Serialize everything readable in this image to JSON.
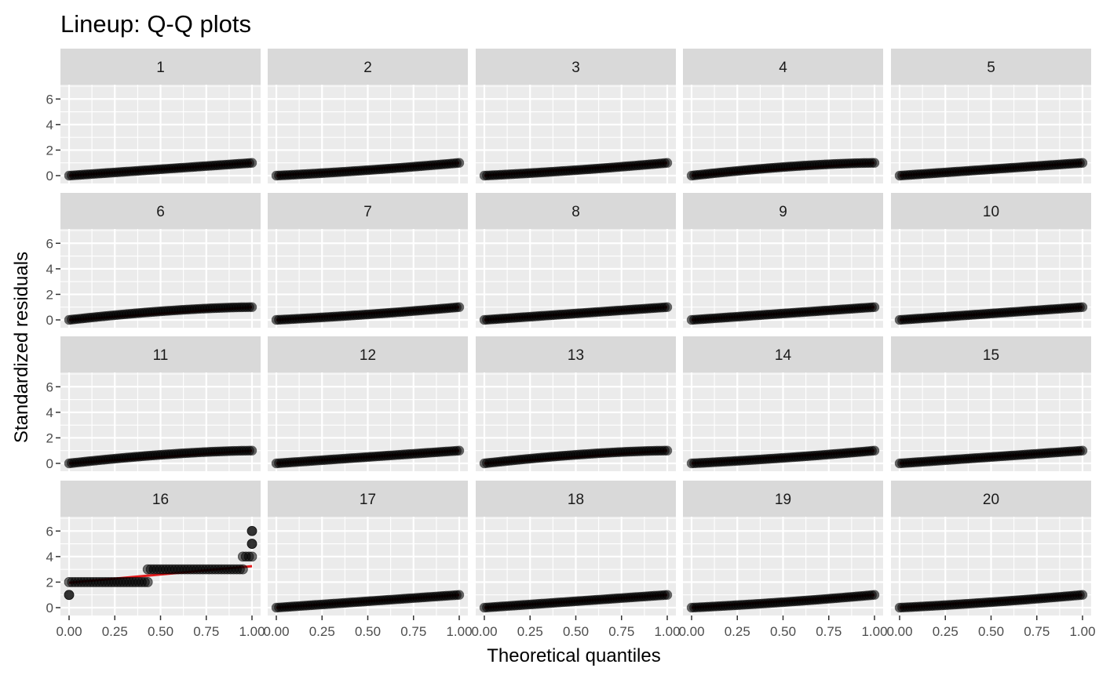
{
  "chart_data": {
    "type": "scatter",
    "title": "Lineup: Q-Q plots",
    "xlabel": "Theoretical quantiles",
    "ylabel": "Standardized residuals",
    "xlim": [
      0,
      1
    ],
    "ylim": [
      0,
      7
    ],
    "x_ticks": [
      0,
      0.25,
      0.5,
      0.75,
      1
    ],
    "x_tick_labels": [
      "0.00",
      "0.25",
      "0.50",
      "0.75",
      "1.00"
    ],
    "y_ticks": [
      0,
      2,
      4,
      6
    ],
    "y_tick_labels": [
      "0",
      "2",
      "4",
      "6"
    ],
    "grid": true,
    "layout": {
      "rows": 4,
      "cols": 5
    },
    "colors": {
      "panel_background": "#ebebeb",
      "strip_background": "#d9d9d9",
      "gridline": "#ffffff",
      "point": "#000000",
      "reference_line": "#e41a1c"
    },
    "panels": [
      {
        "label": "1",
        "shape": "linear",
        "point_y_end": 1.0,
        "line": [
          [
            0,
            0
          ],
          [
            1,
            1
          ]
        ]
      },
      {
        "label": "2",
        "shape": "convex",
        "point_y_end": 1.0,
        "line": [
          [
            0,
            0
          ],
          [
            1,
            1
          ]
        ]
      },
      {
        "label": "3",
        "shape": "convex",
        "point_y_end": 1.0,
        "line": [
          [
            0,
            0
          ],
          [
            1,
            1
          ]
        ]
      },
      {
        "label": "4",
        "shape": "concave",
        "point_y_end": 1.0,
        "line": [
          [
            0,
            0
          ],
          [
            1,
            1
          ]
        ]
      },
      {
        "label": "5",
        "shape": "linear",
        "point_y_end": 1.0,
        "line": [
          [
            0,
            0
          ],
          [
            1,
            1
          ]
        ]
      },
      {
        "label": "6",
        "shape": "concave",
        "point_y_end": 1.0,
        "line": [
          [
            0,
            0
          ],
          [
            1,
            1
          ]
        ]
      },
      {
        "label": "7",
        "shape": "convex",
        "point_y_end": 1.0,
        "line": [
          [
            0,
            0
          ],
          [
            1,
            1
          ]
        ]
      },
      {
        "label": "8",
        "shape": "linear",
        "point_y_end": 1.0,
        "line": [
          [
            0,
            0
          ],
          [
            1,
            1
          ]
        ]
      },
      {
        "label": "9",
        "shape": "linear",
        "point_y_end": 1.0,
        "line": [
          [
            0,
            0
          ],
          [
            1,
            1
          ]
        ]
      },
      {
        "label": "10",
        "shape": "linear",
        "point_y_end": 1.0,
        "line": [
          [
            0,
            0
          ],
          [
            1,
            1
          ]
        ]
      },
      {
        "label": "11",
        "shape": "concave",
        "point_y_end": 1.0,
        "line": [
          [
            0,
            0
          ],
          [
            1,
            1
          ]
        ]
      },
      {
        "label": "12",
        "shape": "linear",
        "point_y_end": 1.0,
        "line": [
          [
            0,
            0
          ],
          [
            1,
            1
          ]
        ]
      },
      {
        "label": "13",
        "shape": "concave",
        "point_y_end": 1.0,
        "line": [
          [
            0,
            0
          ],
          [
            1,
            1
          ]
        ]
      },
      {
        "label": "14",
        "shape": "convex",
        "point_y_end": 1.0,
        "line": [
          [
            0,
            0
          ],
          [
            1,
            1
          ]
        ]
      },
      {
        "label": "15",
        "shape": "linear",
        "point_y_end": 1.0,
        "line": [
          [
            0,
            0
          ],
          [
            1,
            1
          ]
        ]
      },
      {
        "label": "16",
        "shape": "steps",
        "line": [
          [
            0,
            1.95
          ],
          [
            1,
            3.25
          ]
        ],
        "step_points": [
          {
            "x": [
              0.0,
              0.0
            ],
            "y": 1
          },
          {
            "x": [
              0.0,
              0.43
            ],
            "y": 2
          },
          {
            "x": [
              0.43,
              0.95
            ],
            "y": 3
          },
          {
            "x": [
              0.95,
              1.0
            ],
            "y": 4
          },
          {
            "x": [
              1.0,
              1.0
            ],
            "y": 5
          },
          {
            "x": [
              1.0,
              1.0
            ],
            "y": 6
          }
        ]
      },
      {
        "label": "17",
        "shape": "linear",
        "point_y_end": 1.0,
        "line": [
          [
            0,
            0
          ],
          [
            1,
            1
          ]
        ]
      },
      {
        "label": "18",
        "shape": "linear",
        "point_y_end": 1.0,
        "line": [
          [
            0,
            0
          ],
          [
            1,
            1
          ]
        ]
      },
      {
        "label": "19",
        "shape": "convex",
        "point_y_end": 1.0,
        "line": [
          [
            0,
            0
          ],
          [
            1,
            1
          ]
        ]
      },
      {
        "label": "20",
        "shape": "convex",
        "point_y_end": 1.0,
        "line": [
          [
            0,
            0
          ],
          [
            1,
            1
          ]
        ]
      }
    ]
  }
}
